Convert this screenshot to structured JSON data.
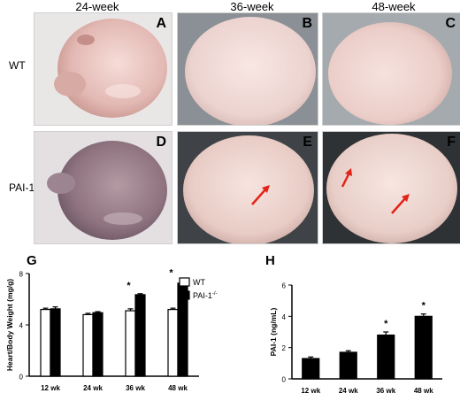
{
  "column_headers": [
    "24-week",
    "36-week",
    "48-week"
  ],
  "row_labels": {
    "wt": "WT",
    "pai_base": "PAI-1",
    "pai_sup": "-/-"
  },
  "panels": [
    "A",
    "B",
    "C",
    "D",
    "E",
    "F"
  ],
  "chart_data": [
    {
      "letter": "G",
      "type": "bar",
      "ylabel": "Heart/Body Weight (mg/g)",
      "categories": [
        "12 wk",
        "24 wk",
        "36 wk",
        "48 wk"
      ],
      "ylim": [
        0,
        8
      ],
      "yticks": [
        0,
        4,
        8
      ],
      "legend": {
        "wt": "WT",
        "pai_base": "PAI-1",
        "pai_sup": "-/-"
      },
      "series": [
        {
          "key": "wt",
          "values": [
            5.2,
            4.8,
            5.1,
            5.2
          ],
          "errors": [
            0.1,
            0.1,
            0.15,
            0.1
          ],
          "color": "#ffffff"
        },
        {
          "key": "pai",
          "values": [
            5.25,
            4.95,
            6.35,
            7.25
          ],
          "errors": [
            0.15,
            0.08,
            0.08,
            0.18
          ],
          "color": "#000000"
        }
      ],
      "significance": [
        "",
        "",
        "*",
        "*"
      ]
    },
    {
      "letter": "H",
      "type": "bar",
      "ylabel": "PAI-1 (ng/mL)",
      "categories": [
        "12 wk",
        "24 wk",
        "36 wk",
        "48 wk"
      ],
      "ylim": [
        0,
        6
      ],
      "yticks": [
        0,
        2,
        4,
        6
      ],
      "series": [
        {
          "key": "pai",
          "values": [
            1.3,
            1.7,
            2.8,
            4.0
          ],
          "errors": [
            0.1,
            0.1,
            0.2,
            0.15
          ],
          "color": "#000000"
        }
      ],
      "significance": [
        "",
        "",
        "*",
        "*"
      ]
    }
  ]
}
